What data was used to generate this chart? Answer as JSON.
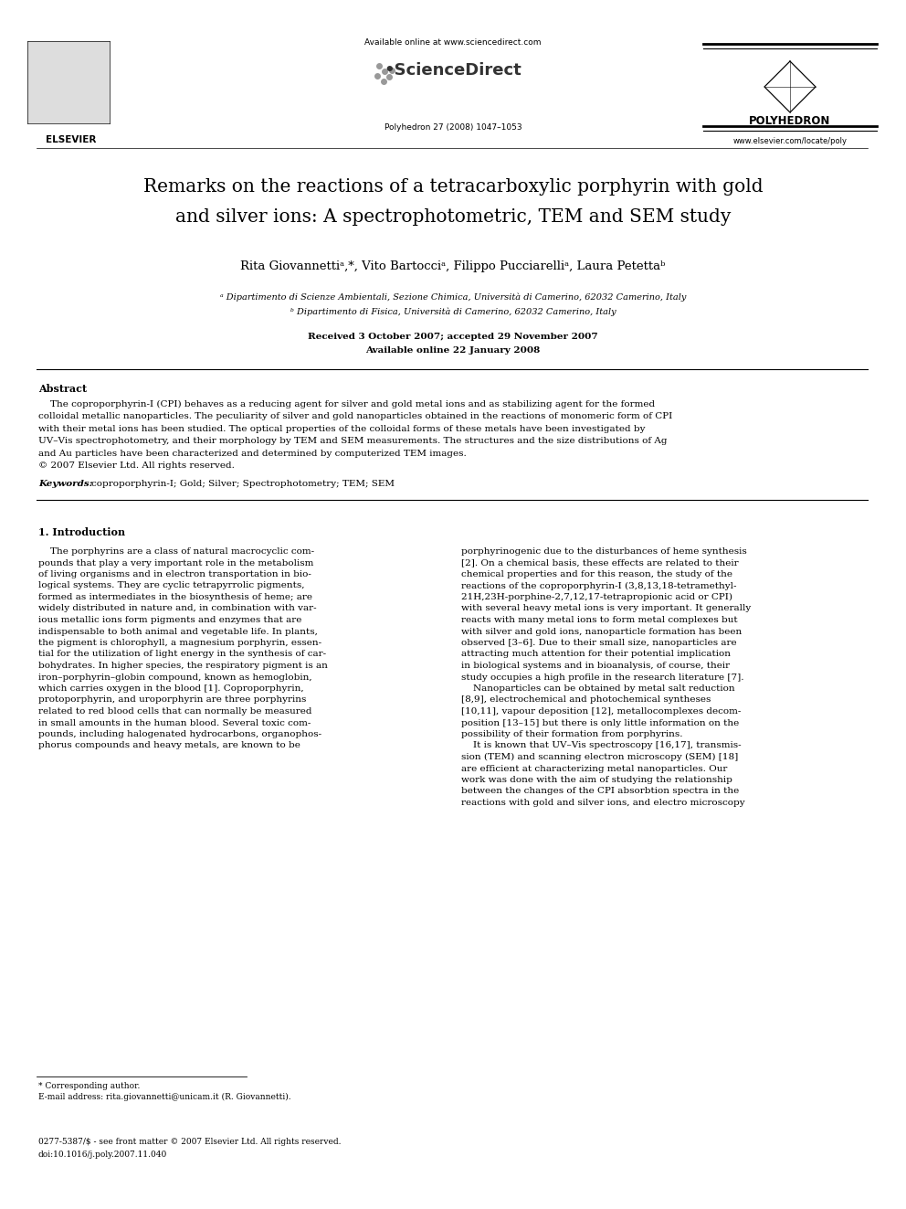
{
  "page_width": 9.92,
  "page_height": 13.23,
  "dpi": 100,
  "bg_color": "#ffffff",
  "header": {
    "available_online": "Available online at www.sciencedirect.com",
    "journal_info": "Polyhedron 27 (2008) 1047–1053",
    "elsevier_label": "ELSEVIER",
    "polyhedron_label": "POLYHEDRON",
    "website": "www.elsevier.com/locate/poly"
  },
  "title_line1": "Remarks on the reactions of a tetracarboxylic porphyrin with gold",
  "title_line2": "and silver ions: A spectrophotometric, TEM and SEM study",
  "authors": "Rita Giovannettiᵃ,*, Vito Bartocciᵃ, Filippo Pucciarelliᵃ, Laura Petettaᵇ",
  "affil_a": "ᵃ Dipartimento di Scienze Ambientali, Sezione Chimica, Università di Camerino, 62032 Camerino, Italy",
  "affil_b": "ᵇ Dipartimento di Fisica, Università di Camerino, 62032 Camerino, Italy",
  "received": "Received 3 October 2007; accepted 29 November 2007",
  "available": "Available online 22 January 2008",
  "abstract_heading": "Abstract",
  "abstract_lines": [
    "The coproporphyrin-I (CPI) behaves as a reducing agent for silver and gold metal ions and as stabilizing agent for the formed",
    "colloidal metallic nanoparticles. The peculiarity of silver and gold nanoparticles obtained in the reactions of monomeric form of CPI",
    "with their metal ions has been studied. The optical properties of the colloidal forms of these metals have been investigated by",
    "UV–Vis spectrophotometry, and their morphology by TEM and SEM measurements. The structures and the size distributions of Ag",
    "and Au particles have been characterized and determined by computerized TEM images.",
    "© 2007 Elsevier Ltd. All rights reserved."
  ],
  "keywords_label": "Keywords:",
  "keywords_text": "coproporphyrin-I; Gold; Silver; Spectrophotometry; TEM; SEM",
  "section1_heading": "1. Introduction",
  "col1_lines": [
    "    The porphyrins are a class of natural macrocyclic com-",
    "pounds that play a very important role in the metabolism",
    "of living organisms and in electron transportation in bio-",
    "logical systems. They are cyclic tetrapyrrolic pigments,",
    "formed as intermediates in the biosynthesis of heme; are",
    "widely distributed in nature and, in combination with var-",
    "ious metallic ions form pigments and enzymes that are",
    "indispensable to both animal and vegetable life. In plants,",
    "the pigment is chlorophyll, a magnesium porphyrin, essen-",
    "tial for the utilization of light energy in the synthesis of car-",
    "bohydrates. In higher species, the respiratory pigment is an",
    "iron–porphyrin–globin compound, known as hemoglobin,",
    "which carries oxygen in the blood [1]. Coproporphyrin,",
    "protoporphyrin, and uroporphyrin are three porphyrins",
    "related to red blood cells that can normally be measured",
    "in small amounts in the human blood. Several toxic com-",
    "pounds, including halogenated hydrocarbons, organophos-",
    "phorus compounds and heavy metals, are known to be"
  ],
  "col2_lines": [
    "porphyrinogenic due to the disturbances of heme synthesis",
    "[2]. On a chemical basis, these effects are related to their",
    "chemical properties and for this reason, the study of the",
    "reactions of the coproporphyrin-I (3,8,13,18-tetramethyl-",
    "21H,23H-porphine-2,7,12,17-tetrapropionic acid or CPI)",
    "with several heavy metal ions is very important. It generally",
    "reacts with many metal ions to form metal complexes but",
    "with silver and gold ions, nanoparticle formation has been",
    "observed [3–6]. Due to their small size, nanoparticles are",
    "attracting much attention for their potential implication",
    "in biological systems and in bioanalysis, of course, their",
    "study occupies a high profile in the research literature [7].",
    "    Nanoparticles can be obtained by metal salt reduction",
    "[8,9], electrochemical and photochemical syntheses",
    "[10,11], vapour deposition [12], metallocomplexes decom-",
    "position [13–15] but there is only little information on the",
    "possibility of their formation from porphyrins.",
    "    It is known that UV–Vis spectroscopy [16,17], transmis-",
    "sion (TEM) and scanning electron microscopy (SEM) [18]",
    "are efficient at characterizing metal nanoparticles. Our",
    "work was done with the aim of studying the relationship",
    "between the changes of the CPI absorbtion spectra in the",
    "reactions with gold and silver ions, and electro microscopy"
  ],
  "footnote_star": "* Corresponding author.",
  "footnote_email": "E-mail address: rita.giovannetti@unicam.it (R. Giovannetti).",
  "footer_left": "0277-5387/$ - see front matter © 2007 Elsevier Ltd. All rights reserved.",
  "footer_doi": "doi:10.1016/j.poly.2007.11.040"
}
